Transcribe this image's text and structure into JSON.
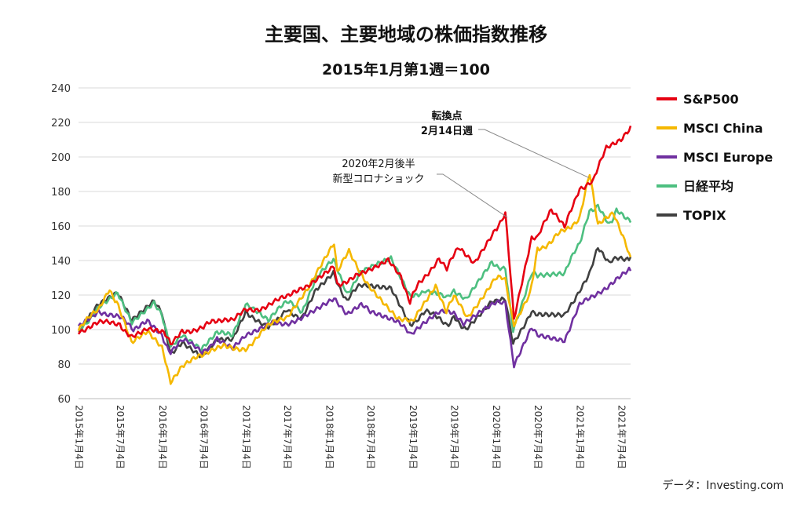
{
  "chart_data": {
    "type": "line",
    "title": "主要国、主要地域の株価指数推移",
    "subtitle": "2015年1月第1週＝100",
    "ylim": [
      60,
      240
    ],
    "yticks": [
      60,
      80,
      100,
      120,
      140,
      160,
      180,
      200,
      220,
      240
    ],
    "x_ticks": [
      "2015年1月4日",
      "2015年7月4日",
      "2016年1月4日",
      "2016年7月4日",
      "2017年1月4日",
      "2017年7月4日",
      "2018年1月4日",
      "2018年7月4日",
      "2019年1月4日",
      "2019年7月4日",
      "2020年1月4日",
      "2020年7月4日",
      "2021年1月4日",
      "2021年7月4日"
    ],
    "x_range": [
      "2015-01-04",
      "2021-08-15"
    ],
    "grid": "horizontal",
    "legend_position": "right",
    "series": [
      {
        "name": "S&P500",
        "color": "#e60012",
        "points": [
          [
            "2015-01-04",
            100
          ],
          [
            "2015-04-01",
            103
          ],
          [
            "2015-07-04",
            104
          ],
          [
            "2015-08-25",
            95
          ],
          [
            "2015-11-01",
            102
          ],
          [
            "2016-01-04",
            99
          ],
          [
            "2016-02-11",
            91
          ],
          [
            "2016-04-01",
            100
          ],
          [
            "2016-07-04",
            101
          ],
          [
            "2016-09-01",
            105
          ],
          [
            "2016-11-08",
            104
          ],
          [
            "2017-01-04",
            111
          ],
          [
            "2017-04-01",
            114
          ],
          [
            "2017-07-04",
            118
          ],
          [
            "2017-10-01",
            124
          ],
          [
            "2018-01-26",
            138
          ],
          [
            "2018-02-09",
            127
          ],
          [
            "2018-05-01",
            131
          ],
          [
            "2018-09-20",
            142
          ],
          [
            "2018-11-15",
            132
          ],
          [
            "2018-12-24",
            115
          ],
          [
            "2019-02-01",
            127
          ],
          [
            "2019-04-30",
            142
          ],
          [
            "2019-06-03",
            135
          ],
          [
            "2019-07-26",
            147
          ],
          [
            "2019-10-02",
            140
          ],
          [
            "2019-12-31",
            159
          ],
          [
            "2020-02-14",
            166
          ],
          [
            "2020-03-23",
            107
          ],
          [
            "2020-06-08",
            154
          ],
          [
            "2020-07-04",
            152
          ],
          [
            "2020-09-02",
            170
          ],
          [
            "2020-10-30",
            158
          ],
          [
            "2021-01-04",
            183
          ],
          [
            "2021-03-04",
            185
          ],
          [
            "2021-05-01",
            205
          ],
          [
            "2021-07-04",
            211
          ],
          [
            "2021-08-15",
            218
          ]
        ]
      },
      {
        "name": "MSCI China",
        "color": "#f5b800",
        "points": [
          [
            "2015-01-04",
            100
          ],
          [
            "2015-04-01",
            111
          ],
          [
            "2015-05-20",
            123
          ],
          [
            "2015-06-20",
            117
          ],
          [
            "2015-08-24",
            91
          ],
          [
            "2015-11-01",
            98
          ],
          [
            "2016-01-04",
            88
          ],
          [
            "2016-02-11",
            71
          ],
          [
            "2016-04-01",
            80
          ],
          [
            "2016-07-04",
            84
          ],
          [
            "2016-10-01",
            90
          ],
          [
            "2017-01-04",
            90
          ],
          [
            "2017-04-01",
            100
          ],
          [
            "2017-07-04",
            108
          ],
          [
            "2017-10-01",
            122
          ],
          [
            "2018-01-26",
            149
          ],
          [
            "2018-02-09",
            132
          ],
          [
            "2018-04-01",
            145
          ],
          [
            "2018-07-04",
            125
          ],
          [
            "2018-10-30",
            108
          ],
          [
            "2019-01-04",
            103
          ],
          [
            "2019-04-15",
            127
          ],
          [
            "2019-06-01",
            110
          ],
          [
            "2019-07-04",
            118
          ],
          [
            "2019-09-01",
            108
          ],
          [
            "2019-12-31",
            130
          ],
          [
            "2020-02-14",
            128
          ],
          [
            "2020-03-23",
            104
          ],
          [
            "2020-06-01",
            122
          ],
          [
            "2020-07-04",
            148
          ],
          [
            "2020-09-01",
            150
          ],
          [
            "2020-10-30",
            158
          ],
          [
            "2021-01-04",
            165
          ],
          [
            "2021-02-17",
            189
          ],
          [
            "2021-03-25",
            160
          ],
          [
            "2021-06-01",
            166
          ],
          [
            "2021-07-20",
            150
          ],
          [
            "2021-08-15",
            142
          ]
        ]
      },
      {
        "name": "MSCI Europe",
        "color": "#7030a0",
        "points": [
          [
            "2015-01-04",
            100
          ],
          [
            "2015-04-01",
            112
          ],
          [
            "2015-07-04",
            106
          ],
          [
            "2015-09-01",
            101
          ],
          [
            "2015-11-01",
            104
          ],
          [
            "2016-01-04",
            97
          ],
          [
            "2016-02-11",
            87
          ],
          [
            "2016-04-01",
            93
          ],
          [
            "2016-06-27",
            88
          ],
          [
            "2016-09-01",
            94
          ],
          [
            "2016-11-08",
            91
          ],
          [
            "2017-01-04",
            97
          ],
          [
            "2017-05-01",
            106
          ],
          [
            "2017-07-04",
            104
          ],
          [
            "2017-10-01",
            110
          ],
          [
            "2018-01-26",
            117
          ],
          [
            "2018-03-23",
            108
          ],
          [
            "2018-05-25",
            114
          ],
          [
            "2018-07-04",
            109
          ],
          [
            "2018-10-30",
            104
          ],
          [
            "2018-12-27",
            96
          ],
          [
            "2019-04-30",
            109
          ],
          [
            "2019-07-04",
            109
          ],
          [
            "2019-08-15",
            103
          ],
          [
            "2019-12-31",
            114
          ],
          [
            "2020-02-14",
            117
          ],
          [
            "2020-03-23",
            78
          ],
          [
            "2020-06-08",
            100
          ],
          [
            "2020-07-04",
            98
          ],
          [
            "2020-10-30",
            95
          ],
          [
            "2021-01-04",
            113
          ],
          [
            "2021-04-01",
            123
          ],
          [
            "2021-07-04",
            130
          ],
          [
            "2021-08-15",
            134
          ]
        ]
      },
      {
        "name": "日経平均",
        "color": "#4dbf80",
        "points": [
          [
            "2015-01-04",
            100
          ],
          [
            "2015-04-01",
            113
          ],
          [
            "2015-06-24",
            121
          ],
          [
            "2015-08-25",
            105
          ],
          [
            "2015-11-30",
            117
          ],
          [
            "2016-01-04",
            110
          ],
          [
            "2016-02-12",
            89
          ],
          [
            "2016-04-01",
            96
          ],
          [
            "2016-06-24",
            88
          ],
          [
            "2016-09-01",
            97
          ],
          [
            "2016-11-08",
            96
          ],
          [
            "2017-01-04",
            113
          ],
          [
            "2017-04-14",
            106
          ],
          [
            "2017-07-04",
            115
          ],
          [
            "2017-09-08",
            111
          ],
          [
            "2017-11-09",
            130
          ],
          [
            "2018-01-23",
            139
          ],
          [
            "2018-03-23",
            122
          ],
          [
            "2018-05-21",
            132
          ],
          [
            "2018-10-02",
            140
          ],
          [
            "2018-12-25",
            118
          ],
          [
            "2019-03-01",
            124
          ],
          [
            "2019-06-03",
            117
          ],
          [
            "2019-07-04",
            124
          ],
          [
            "2019-08-26",
            116
          ],
          [
            "2019-12-17",
            139
          ],
          [
            "2020-02-14",
            136
          ],
          [
            "2020-03-19",
            101
          ],
          [
            "2020-06-08",
            132
          ],
          [
            "2020-07-04",
            130
          ],
          [
            "2020-10-30",
            132
          ],
          [
            "2021-01-04",
            150
          ],
          [
            "2021-02-16",
            170
          ],
          [
            "2021-03-25",
            172
          ],
          [
            "2021-05-13",
            161
          ],
          [
            "2021-06-14",
            170
          ],
          [
            "2021-08-15",
            162
          ]
        ]
      },
      {
        "name": "TOPIX",
        "color": "#404040",
        "points": [
          [
            "2015-01-04",
            100
          ],
          [
            "2015-04-01",
            113
          ],
          [
            "2015-06-24",
            120
          ],
          [
            "2015-08-25",
            104
          ],
          [
            "2015-11-30",
            116
          ],
          [
            "2016-01-04",
            109
          ],
          [
            "2016-02-12",
            87
          ],
          [
            "2016-04-01",
            94
          ],
          [
            "2016-06-24",
            86
          ],
          [
            "2016-09-01",
            95
          ],
          [
            "2016-11-08",
            93
          ],
          [
            "2017-01-04",
            110
          ],
          [
            "2017-04-14",
            103
          ],
          [
            "2017-07-04",
            111
          ],
          [
            "2017-09-08",
            108
          ],
          [
            "2017-11-09",
            125
          ],
          [
            "2018-01-23",
            133
          ],
          [
            "2018-03-23",
            117
          ],
          [
            "2018-05-21",
            125
          ],
          [
            "2018-10-02",
            125
          ],
          [
            "2018-12-25",
            104
          ],
          [
            "2019-03-01",
            110
          ],
          [
            "2019-06-03",
            103
          ],
          [
            "2019-07-04",
            108
          ],
          [
            "2019-08-26",
            101
          ],
          [
            "2019-12-17",
            118
          ],
          [
            "2020-02-14",
            116
          ],
          [
            "2020-03-19",
            91
          ],
          [
            "2020-06-08",
            112
          ],
          [
            "2020-07-04",
            108
          ],
          [
            "2020-10-30",
            107
          ],
          [
            "2021-01-04",
            124
          ],
          [
            "2021-02-16",
            133
          ],
          [
            "2021-03-25",
            146
          ],
          [
            "2021-05-13",
            137
          ],
          [
            "2021-06-14",
            143
          ],
          [
            "2021-08-15",
            142
          ]
        ]
      }
    ],
    "annotations": [
      {
        "lines": [
          "転換点",
          "2月14日週"
        ],
        "bold": true,
        "target_date": "2021-02-14",
        "target_value": 188
      },
      {
        "lines": [
          "2020年2月後半",
          "新型コロナショック"
        ],
        "bold": false,
        "target_date": "2020-02-23",
        "target_value": 165
      }
    ],
    "source": "データ：Investing.com"
  }
}
